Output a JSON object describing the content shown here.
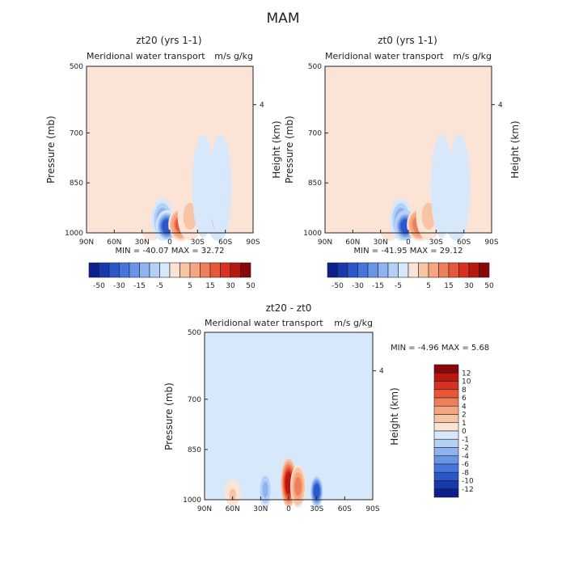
{
  "figure_title": "MAM",
  "chart_data": [
    {
      "type": "heatmap",
      "title": "zt20 (yrs 1-1)",
      "subtitle": "Meridional water transport",
      "units": "m/s g/kg",
      "xlabel": "",
      "ylabel": "Pressure (mb)",
      "ylabel_right": "Height (km)",
      "x_ticks": [
        "90N",
        "60N",
        "30N",
        "0",
        "30S",
        "60S",
        "90S"
      ],
      "y_ticks": [
        "500",
        "700",
        "850",
        "1000"
      ],
      "y_tick_values": [
        500,
        700,
        850,
        1000
      ],
      "right_ticks": [
        "4"
      ],
      "min": -40.07,
      "max": 32.72,
      "stats_label": "MIN = -40.07   MAX =  32.72",
      "colorbar_labels": [
        "-50",
        "-30",
        "-15",
        "-5",
        "5",
        "15",
        "30",
        "50"
      ],
      "features": [
        {
          "lat": -22,
          "p": 880,
          "value": 2
        },
        {
          "lat": -20,
          "p": 960,
          "value": 5
        },
        {
          "lat": -8,
          "p": 960,
          "value": -20
        },
        {
          "lat": -3,
          "p": 980,
          "value": -40
        },
        {
          "lat": 12,
          "p": 975,
          "value": 32
        },
        {
          "lat": 22,
          "p": 950,
          "value": 10
        },
        {
          "lat": 36,
          "p": 860,
          "value": -4
        },
        {
          "lat": 52,
          "p": 960,
          "value": -10
        },
        {
          "lat": 55,
          "p": 860,
          "value": -2
        }
      ]
    },
    {
      "type": "heatmap",
      "title": "zt0 (yrs 1-1)",
      "subtitle": "Meridional water transport",
      "units": "m/s g/kg",
      "xlabel": "",
      "ylabel": "Pressure (mb)",
      "ylabel_right": "Height (km)",
      "x_ticks": [
        "90N",
        "60N",
        "30N",
        "0",
        "30S",
        "60S",
        "90S"
      ],
      "y_ticks": [
        "500",
        "700",
        "850",
        "1000"
      ],
      "y_tick_values": [
        500,
        700,
        850,
        1000
      ],
      "right_ticks": [
        "4"
      ],
      "min": -41.95,
      "max": 29.12,
      "stats_label": "MIN = -41.95   MAX =  29.12",
      "colorbar_labels": [
        "-50",
        "-30",
        "-15",
        "-5",
        "5",
        "15",
        "30",
        "50"
      ],
      "features": [
        {
          "lat": -22,
          "p": 880,
          "value": 2
        },
        {
          "lat": -20,
          "p": 960,
          "value": 5
        },
        {
          "lat": -8,
          "p": 960,
          "value": -20
        },
        {
          "lat": -3,
          "p": 980,
          "value": -42
        },
        {
          "lat": 12,
          "p": 975,
          "value": 29
        },
        {
          "lat": 22,
          "p": 950,
          "value": 9
        },
        {
          "lat": 36,
          "p": 860,
          "value": -4
        },
        {
          "lat": 52,
          "p": 960,
          "value": -8
        },
        {
          "lat": 55,
          "p": 860,
          "value": -2
        }
      ]
    },
    {
      "type": "heatmap",
      "title": "zt20 - zt0",
      "subtitle": "Meridional water transport",
      "units": "m/s g/kg",
      "xlabel": "",
      "ylabel": "Pressure (mb)",
      "ylabel_right": "Height (km)",
      "x_ticks": [
        "90N",
        "60N",
        "30N",
        "0",
        "30S",
        "60S",
        "90S"
      ],
      "y_ticks": [
        "500",
        "700",
        "850",
        "1000"
      ],
      "y_tick_values": [
        500,
        700,
        850,
        1000
      ],
      "right_ticks": [
        "4"
      ],
      "min": -4.96,
      "max": 5.68,
      "stats_label": "MIN =   -4.96   MAX =    5.68",
      "colorbar_labels": [
        "12",
        "10",
        "8",
        "6",
        "4",
        "2",
        "1",
        "0",
        "-1",
        "-2",
        "-4",
        "-6",
        "-8",
        "-10",
        "-12"
      ],
      "features": [
        {
          "lat": 0,
          "p": 950,
          "value": 5.68
        },
        {
          "lat": 10,
          "p": 960,
          "value": 3
        },
        {
          "lat": 30,
          "p": 975,
          "value": -4.96
        },
        {
          "lat": -25,
          "p": 970,
          "value": -2
        },
        {
          "lat": -60,
          "p": 985,
          "value": 1
        }
      ]
    }
  ]
}
